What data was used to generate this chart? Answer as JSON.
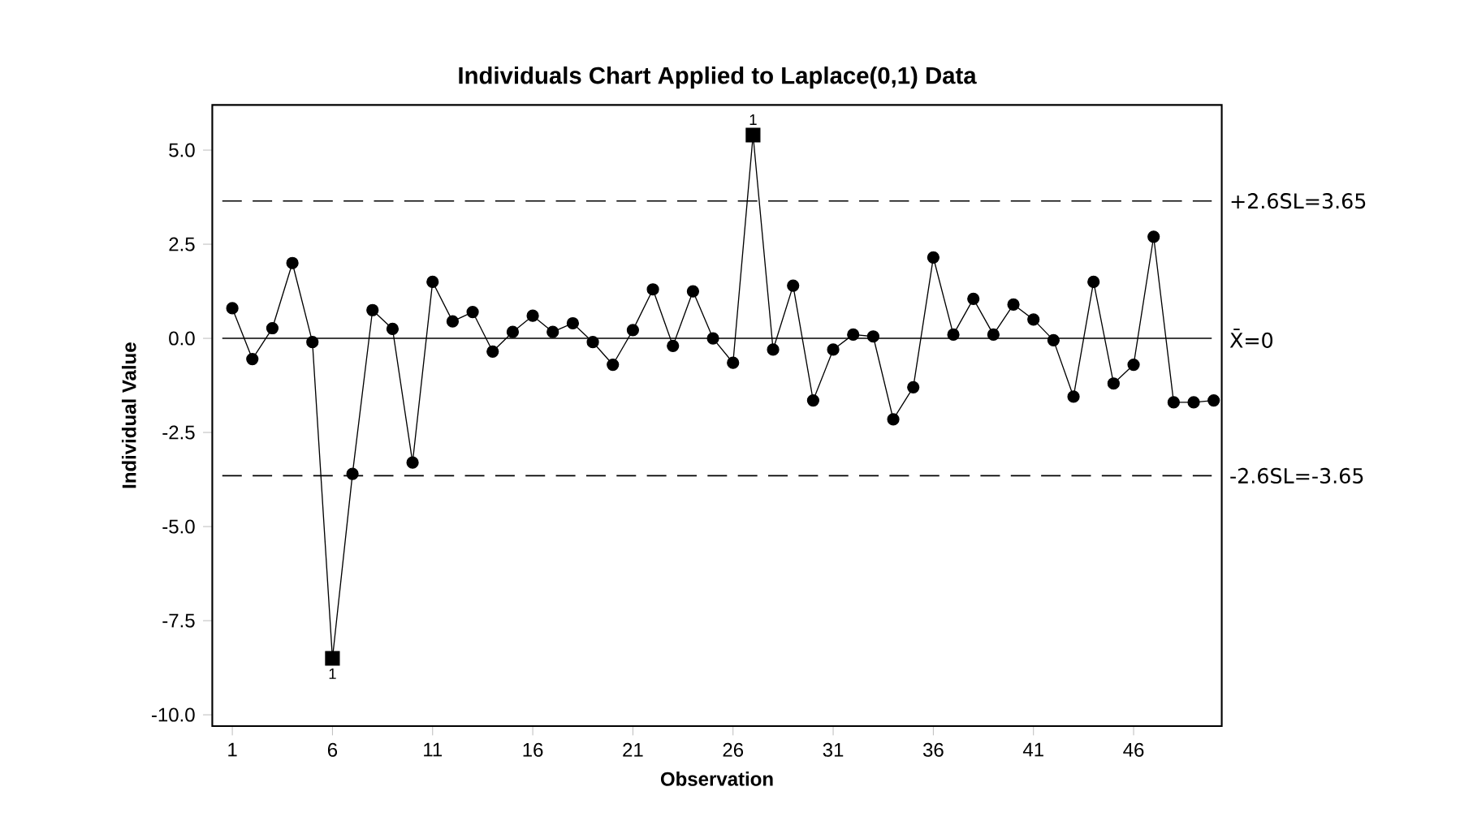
{
  "chart_data": {
    "type": "line",
    "title": "Individuals Chart Applied to Laplace(0,1) Data",
    "xlabel": "Observation",
    "ylabel": "Individual Value",
    "series": [
      {
        "color": "#000000",
        "marker": "circle",
        "x": [
          1,
          2,
          3,
          4,
          5,
          6,
          7,
          8,
          9,
          10,
          11,
          12,
          13,
          14,
          15,
          16,
          17,
          18,
          19,
          20,
          21,
          22,
          23,
          24,
          25,
          26,
          27,
          28,
          29,
          30,
          31,
          32,
          33,
          34,
          35,
          36,
          37,
          38,
          39,
          40,
          41,
          42,
          43,
          44,
          45,
          46,
          47,
          48,
          49,
          50
        ],
        "values": [
          0.8,
          -0.55,
          0.27,
          2.0,
          -0.1,
          -8.5,
          -3.6,
          0.75,
          0.25,
          -3.3,
          1.5,
          0.45,
          0.7,
          -0.35,
          0.17,
          0.6,
          0.17,
          0.4,
          -0.1,
          -0.7,
          0.22,
          1.3,
          -0.2,
          1.25,
          0.0,
          -0.65,
          5.4,
          -0.3,
          1.4,
          -1.65,
          -0.3,
          0.1,
          0.05,
          -2.15,
          -1.3,
          2.15,
          0.1,
          1.05,
          0.1,
          0.9,
          0.5,
          -0.05,
          -1.55,
          1.5,
          -1.2,
          -0.7,
          2.7,
          -1.7,
          -1.7,
          -1.65
        ]
      },
      {
        "type": "scatter",
        "color": "#000000",
        "marker": "square",
        "x": [
          6,
          27
        ],
        "values": [
          -8.5,
          5.4
        ]
      }
    ],
    "xlim": [
      0,
      50.4
    ],
    "xticks": [
      1,
      6,
      11,
      16,
      21,
      26,
      31,
      36,
      41,
      46
    ],
    "ylim": [
      -10.3,
      6.2
    ],
    "yticks": [
      {
        "value": -10,
        "label": "-10.0"
      },
      {
        "value": -7.5,
        "label": "-7.5"
      },
      {
        "value": -5,
        "label": "-5.0"
      },
      {
        "value": -2.5,
        "label": "-2.5"
      },
      {
        "value": 0,
        "label": "0.0"
      },
      {
        "value": 2.5,
        "label": "2.5"
      },
      {
        "value": 5,
        "label": "5.0"
      }
    ],
    "ref_lines": [
      {
        "axis": "y",
        "value": 3.65,
        "label": "+2.6SL=3.65",
        "line_style": "dashed",
        "color": "#000000"
      },
      {
        "axis": "y",
        "value": 0,
        "label": "X̄=0",
        "line_style": "solid",
        "color": "#000000"
      },
      {
        "axis": "y",
        "value": -3.65,
        "label": "-2.6SL=-3.65",
        "line_style": "dashed",
        "color": "#000000"
      }
    ],
    "annotations": [
      {
        "text": "1",
        "x": 6,
        "y": -8.5
      },
      {
        "text": "1",
        "x": 27,
        "y": 5.4
      }
    ]
  }
}
